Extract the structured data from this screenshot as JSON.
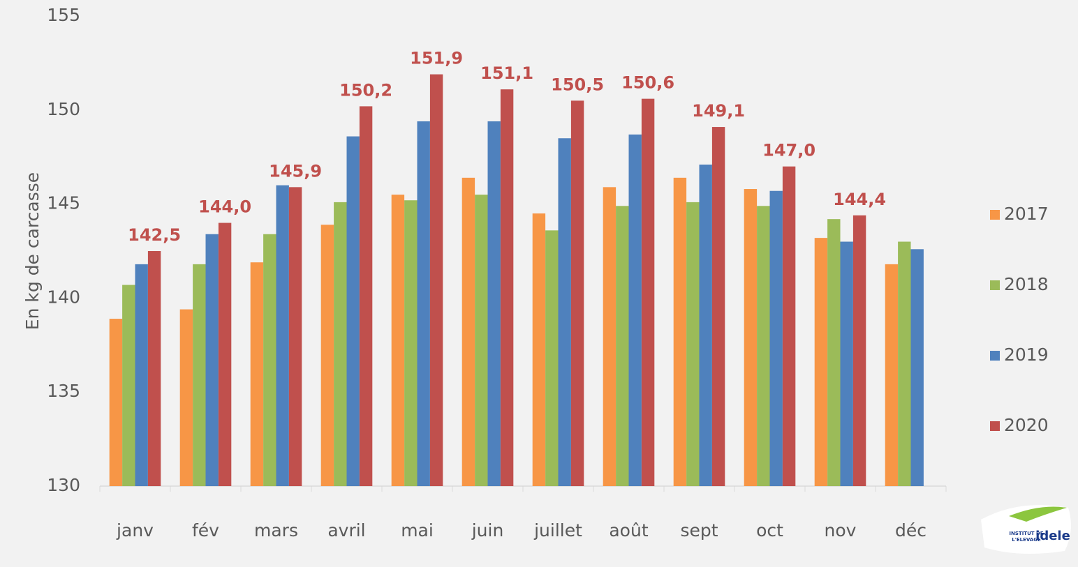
{
  "chart_data": {
    "type": "bar",
    "y_label": "En kg de carcasse",
    "categories": [
      "janv",
      "fév",
      "mars",
      "avril",
      "mai",
      "juin",
      "juillet",
      "août",
      "sept",
      "oct",
      "nov",
      "déc"
    ],
    "series": [
      {
        "name": "2017",
        "color": "#f79646",
        "values": [
          138.9,
          139.4,
          141.9,
          143.9,
          145.5,
          146.4,
          144.5,
          145.9,
          146.4,
          145.8,
          143.2,
          141.8
        ]
      },
      {
        "name": "2018",
        "color": "#9bbb59",
        "values": [
          140.7,
          141.8,
          143.4,
          145.1,
          145.2,
          145.5,
          143.6,
          144.9,
          145.1,
          144.9,
          144.2,
          143.0
        ]
      },
      {
        "name": "2019",
        "color": "#4f81bd",
        "values": [
          141.8,
          143.4,
          146.0,
          148.6,
          149.4,
          149.4,
          148.5,
          148.7,
          147.1,
          145.7,
          143.0,
          142.6
        ]
      },
      {
        "name": "2020",
        "color": "#c0504d",
        "values": [
          142.5,
          144.0,
          145.9,
          150.2,
          151.9,
          151.1,
          150.5,
          150.6,
          149.1,
          147.0,
          144.4,
          null
        ],
        "value_labels": [
          "142,5",
          "144,0",
          "145,9",
          "150,2",
          "151,9",
          "151,1",
          "150,5",
          "150,6",
          "149,1",
          "147,0",
          "144,4",
          null
        ]
      }
    ],
    "ylim": [
      130,
      155
    ],
    "yticks": [
      130,
      135,
      140,
      145,
      150,
      155
    ],
    "grid": false,
    "legend": "right",
    "logo": {
      "line1": "INSTITUT DE",
      "line2": "L'ELEVAGE",
      "brand": "idele"
    }
  }
}
